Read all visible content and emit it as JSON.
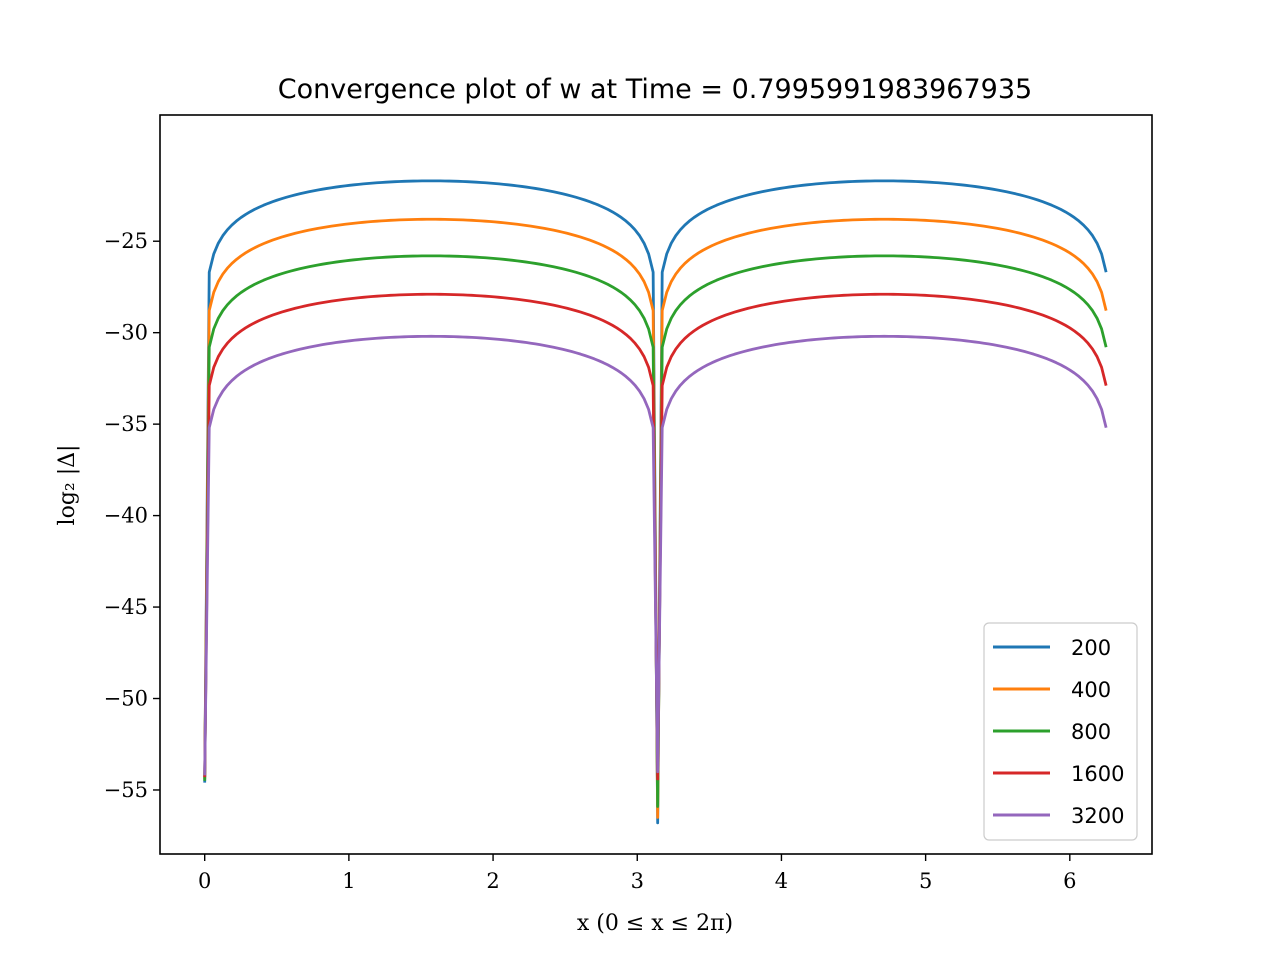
{
  "chart_data": {
    "type": "line",
    "title": "Convergence plot of w at Time = 0.7995991983967935",
    "xlabel": "x (0 ≤ x ≤ 2π)",
    "ylabel": "log₂ |Δ|",
    "xlim": [
      -0.31,
      6.57
    ],
    "ylim": [
      -58.5,
      -18.1
    ],
    "xticks": [
      0,
      1,
      2,
      3,
      4,
      5,
      6
    ],
    "xtick_labels": [
      "0",
      "1",
      "2",
      "3",
      "4",
      "5",
      "6"
    ],
    "yticks": [
      -25,
      -30,
      -35,
      -40,
      -45,
      -50,
      -55
    ],
    "ytick_labels": [
      "−25",
      "−30",
      "−35",
      "−40",
      "−45",
      "−50",
      "−55"
    ],
    "grid": false,
    "legend_position": "lower-right",
    "x_range": [
      0.0,
      6.2518
    ],
    "series": [
      {
        "name": "200",
        "color": "#1f77b4",
        "plateau": -21.7,
        "dip_start": -54.6,
        "dip_mid": -56.8
      },
      {
        "name": "400",
        "color": "#ff7f0e",
        "plateau": -23.8,
        "dip_start": -54.4,
        "dip_mid": -56.5
      },
      {
        "name": "800",
        "color": "#2ca02c",
        "plateau": -25.8,
        "dip_start": -54.5,
        "dip_mid": -55.9
      },
      {
        "name": "1600",
        "color": "#d62728",
        "plateau": -27.9,
        "dip_start": -54.3,
        "dip_mid": -54.4
      },
      {
        "name": "3200",
        "color": "#9467bd",
        "plateau": -30.2,
        "dip_start": -54.2,
        "dip_mid": -54.0
      }
    ]
  }
}
